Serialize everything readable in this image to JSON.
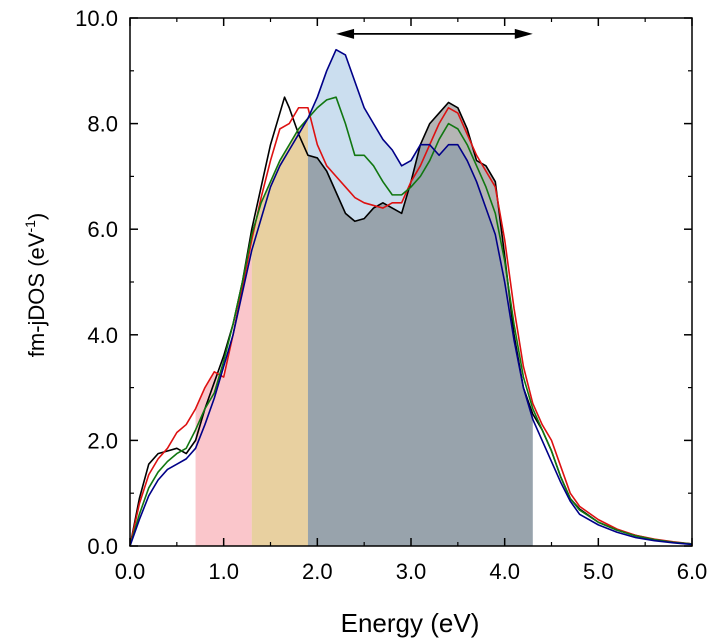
{
  "chart_data": {
    "type": "line",
    "title": "",
    "xlabel": "Energy (eV)",
    "ylabel_main": "fm-jDOS (eV",
    "ylabel_sup": "-1",
    "ylabel_end": ")",
    "xlim": [
      0,
      6
    ],
    "ylim": [
      0,
      10
    ],
    "x_ticks": [
      0,
      1,
      2,
      3,
      4,
      5,
      6
    ],
    "x_tick_labels": [
      "0.0",
      "1.0",
      "2.0",
      "3.0",
      "4.0",
      "5.0",
      "6.0"
    ],
    "y_ticks": [
      0,
      2,
      4,
      6,
      8,
      10
    ],
    "y_tick_labels": [
      "0.0",
      "2.0",
      "4.0",
      "6.0",
      "8.0",
      "10.0"
    ],
    "annotation": {
      "type": "double-arrow",
      "x_range": [
        2.2,
        4.3
      ],
      "y": 9.7
    },
    "series": [
      {
        "name": "black",
        "color": "#000000",
        "fill": "#5a5a5a",
        "fill_range": [
          1.9,
          4.3
        ],
        "x": [
          0,
          0.1,
          0.2,
          0.3,
          0.4,
          0.5,
          0.6,
          0.7,
          0.8,
          0.9,
          1.0,
          1.1,
          1.2,
          1.3,
          1.4,
          1.5,
          1.6,
          1.65,
          1.7,
          1.8,
          1.9,
          2.0,
          2.1,
          2.2,
          2.3,
          2.4,
          2.5,
          2.6,
          2.7,
          2.8,
          2.9,
          3.0,
          3.1,
          3.2,
          3.3,
          3.4,
          3.5,
          3.6,
          3.7,
          3.8,
          3.9,
          4.0,
          4.1,
          4.2,
          4.3,
          4.4,
          4.5,
          4.6,
          4.7,
          4.8,
          5.0,
          5.2,
          5.4,
          5.6,
          5.8,
          6.0
        ],
        "y": [
          0,
          0.9,
          1.55,
          1.75,
          1.8,
          1.85,
          1.75,
          2.0,
          2.6,
          3.1,
          3.6,
          4.2,
          5.0,
          6.0,
          6.8,
          7.6,
          8.2,
          8.5,
          8.3,
          7.8,
          7.4,
          7.35,
          7.1,
          6.7,
          6.3,
          6.15,
          6.2,
          6.4,
          6.5,
          6.4,
          6.3,
          6.9,
          7.6,
          8.0,
          8.2,
          8.4,
          8.3,
          7.9,
          7.3,
          7.2,
          6.9,
          5.5,
          4.0,
          3.0,
          2.5,
          2.2,
          1.8,
          1.3,
          0.9,
          0.7,
          0.45,
          0.3,
          0.2,
          0.12,
          0.07,
          0.04
        ]
      },
      {
        "name": "red",
        "color": "#dd1111",
        "fill": "#f6a0a8",
        "fill_range": [
          0.7,
          1.3
        ],
        "x": [
          0,
          0.1,
          0.2,
          0.3,
          0.4,
          0.5,
          0.6,
          0.7,
          0.8,
          0.9,
          1.0,
          1.1,
          1.2,
          1.3,
          1.4,
          1.5,
          1.6,
          1.7,
          1.8,
          1.9,
          2.0,
          2.1,
          2.2,
          2.3,
          2.4,
          2.5,
          2.6,
          2.7,
          2.8,
          2.9,
          3.0,
          3.1,
          3.2,
          3.3,
          3.4,
          3.5,
          3.6,
          3.7,
          3.8,
          3.9,
          4.0,
          4.1,
          4.2,
          4.3,
          4.4,
          4.5,
          4.6,
          4.7,
          4.8,
          5.0,
          5.2,
          5.4,
          5.6,
          5.8,
          6.0
        ],
        "y": [
          0,
          0.8,
          1.35,
          1.65,
          1.85,
          2.15,
          2.3,
          2.6,
          3.0,
          3.3,
          3.2,
          4.0,
          4.9,
          5.8,
          6.6,
          7.3,
          7.9,
          8.0,
          8.3,
          8.3,
          7.6,
          7.2,
          7.0,
          6.8,
          6.6,
          6.5,
          6.45,
          6.4,
          6.5,
          6.5,
          6.9,
          7.2,
          7.6,
          8.0,
          8.3,
          8.2,
          7.8,
          7.4,
          7.1,
          6.8,
          5.8,
          4.5,
          3.4,
          2.7,
          2.3,
          2.0,
          1.5,
          1.0,
          0.75,
          0.5,
          0.32,
          0.2,
          0.13,
          0.08,
          0.04
        ]
      },
      {
        "name": "green",
        "color": "#117711",
        "fill": "#d8b060",
        "fill_range": [
          1.3,
          1.9
        ],
        "x": [
          0,
          0.1,
          0.2,
          0.3,
          0.4,
          0.5,
          0.6,
          0.7,
          0.8,
          0.9,
          1.0,
          1.1,
          1.2,
          1.3,
          1.4,
          1.5,
          1.6,
          1.7,
          1.8,
          1.9,
          2.0,
          2.1,
          2.2,
          2.3,
          2.4,
          2.5,
          2.6,
          2.7,
          2.8,
          2.9,
          3.0,
          3.1,
          3.2,
          3.3,
          3.4,
          3.5,
          3.6,
          3.7,
          3.8,
          3.9,
          4.0,
          4.1,
          4.2,
          4.3,
          4.4,
          4.5,
          4.6,
          4.7,
          4.8,
          5.0,
          5.2,
          5.4,
          5.6,
          5.8,
          6.0
        ],
        "y": [
          0,
          0.6,
          1.1,
          1.4,
          1.6,
          1.75,
          1.85,
          2.2,
          2.6,
          2.9,
          3.5,
          4.2,
          5.0,
          5.9,
          6.5,
          6.9,
          7.3,
          7.6,
          7.9,
          8.1,
          8.3,
          8.45,
          8.5,
          8.0,
          7.4,
          7.4,
          7.2,
          6.9,
          6.65,
          6.65,
          6.8,
          7.0,
          7.3,
          7.7,
          8.0,
          7.9,
          7.6,
          7.2,
          6.8,
          6.3,
          5.4,
          4.2,
          3.2,
          2.6,
          2.2,
          1.8,
          1.3,
          0.9,
          0.68,
          0.45,
          0.3,
          0.19,
          0.12,
          0.07,
          0.04
        ]
      },
      {
        "name": "blue",
        "color": "#000088",
        "fill": "#c2d8ec",
        "fill_range": [
          1.9,
          4.3
        ],
        "x": [
          0,
          0.1,
          0.2,
          0.3,
          0.4,
          0.5,
          0.6,
          0.7,
          0.8,
          0.9,
          1.0,
          1.1,
          1.2,
          1.3,
          1.4,
          1.5,
          1.6,
          1.7,
          1.8,
          1.9,
          2.0,
          2.1,
          2.2,
          2.3,
          2.4,
          2.5,
          2.6,
          2.7,
          2.8,
          2.9,
          3.0,
          3.1,
          3.2,
          3.3,
          3.4,
          3.5,
          3.6,
          3.7,
          3.8,
          3.9,
          4.0,
          4.1,
          4.2,
          4.3,
          4.4,
          4.5,
          4.6,
          4.7,
          4.8,
          5.0,
          5.2,
          5.4,
          5.6,
          5.8,
          6.0
        ],
        "y": [
          0,
          0.5,
          0.95,
          1.25,
          1.45,
          1.55,
          1.65,
          1.85,
          2.3,
          2.8,
          3.4,
          4.0,
          4.8,
          5.6,
          6.2,
          6.8,
          7.2,
          7.5,
          7.8,
          8.1,
          8.5,
          9.0,
          9.4,
          9.3,
          8.8,
          8.3,
          8.0,
          7.7,
          7.5,
          7.2,
          7.3,
          7.6,
          7.6,
          7.4,
          7.6,
          7.6,
          7.3,
          6.9,
          6.4,
          5.9,
          5.0,
          3.9,
          3.0,
          2.4,
          2.0,
          1.6,
          1.2,
          0.85,
          0.6,
          0.4,
          0.26,
          0.16,
          0.1,
          0.06,
          0.03
        ]
      }
    ]
  }
}
